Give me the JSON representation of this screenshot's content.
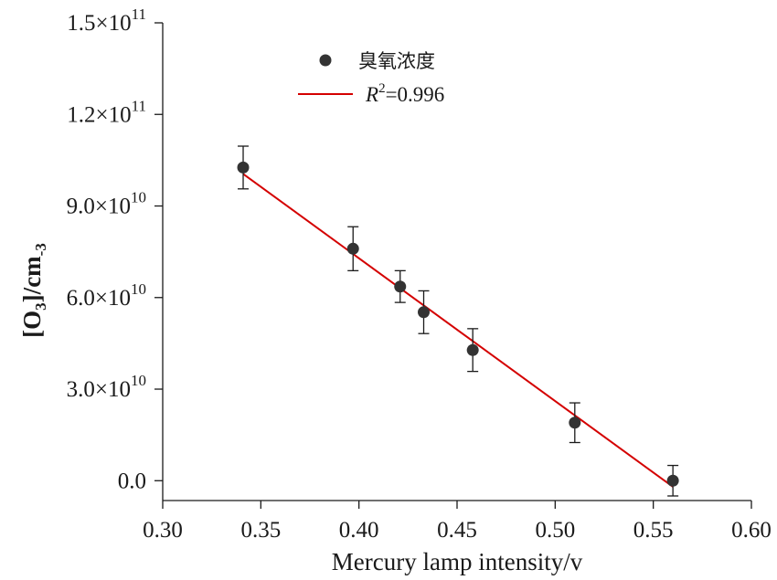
{
  "chart_data": {
    "type": "scatter",
    "xlabel": "Mercury lamp intensity/v",
    "ylabel": {
      "bracket_open": "[",
      "species": "O",
      "species_sub": "3",
      "bracket_close": "]",
      "unit": "/cm",
      "unit_sup": "-3"
    },
    "xlim": [
      0.3,
      0.6
    ],
    "ylim": [
      -6500000000.0,
      150000000000.0
    ],
    "x_ticks": [
      0.3,
      0.35,
      0.4,
      0.45,
      0.5,
      0.55,
      0.6
    ],
    "x_tick_labels": [
      "0.30",
      "0.35",
      "0.40",
      "0.45",
      "0.50",
      "0.55",
      "0.60"
    ],
    "y_ticks": [
      0,
      30000000000.0,
      60000000000.0,
      90000000000.0,
      120000000000.0,
      150000000000.0
    ],
    "y_tick_labels": [
      {
        "mantissa": "0.0",
        "exp": ""
      },
      {
        "mantissa": "3.0×10",
        "exp": "10"
      },
      {
        "mantissa": "6.0×10",
        "exp": "10"
      },
      {
        "mantissa": "9.0×10",
        "exp": "10"
      },
      {
        "mantissa": "1.2×10",
        "exp": "11"
      },
      {
        "mantissa": "1.5×10",
        "exp": "11"
      }
    ],
    "grid": false,
    "legend_position": "top-center",
    "series": [
      {
        "name": "臭氧浓度",
        "color": "#333333",
        "points": [
          {
            "x": 0.341,
            "y": 102600000000.0,
            "err": 7000000000.0
          },
          {
            "x": 0.397,
            "y": 76000000000.0,
            "err": 7200000000.0
          },
          {
            "x": 0.421,
            "y": 63600000000.0,
            "err": 5200000000.0
          },
          {
            "x": 0.433,
            "y": 55200000000.0,
            "err": 7000000000.0
          },
          {
            "x": 0.458,
            "y": 42800000000.0,
            "err": 7000000000.0
          },
          {
            "x": 0.51,
            "y": 19000000000.0,
            "err": 6500000000.0
          },
          {
            "x": 0.56,
            "y": 0.0,
            "err": 5000000000.0
          }
        ]
      }
    ],
    "fit": {
      "label_italic": "R",
      "label_sup": "2",
      "label_value": "=0.996",
      "color": "#d40000",
      "x": [
        0.341,
        0.56
      ],
      "y": [
        100500000000.0,
        -2000000000.0
      ]
    }
  }
}
